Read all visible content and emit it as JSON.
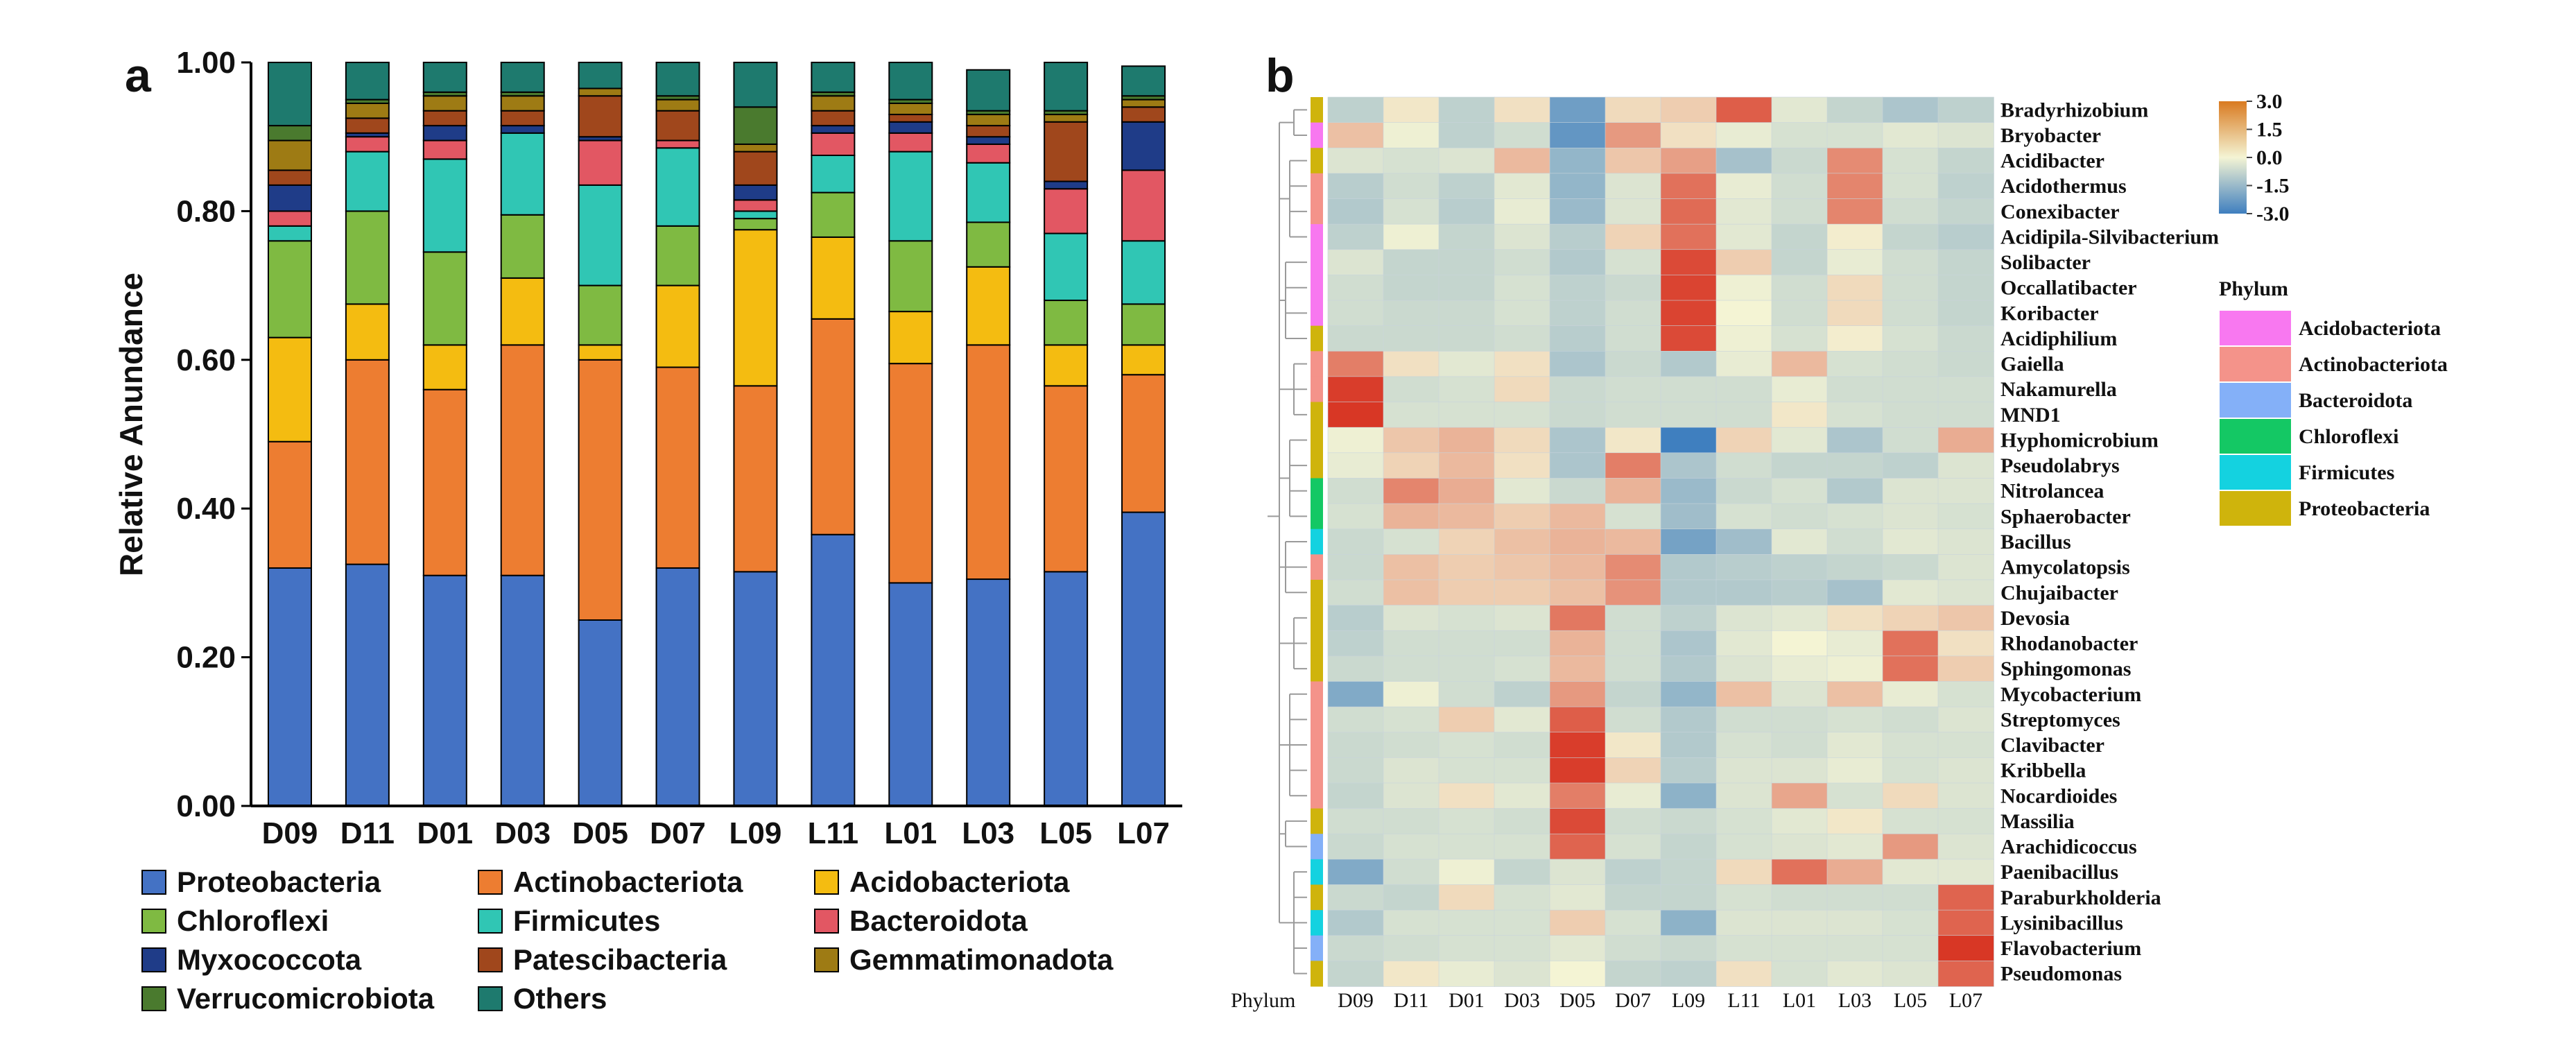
{
  "panel_a": {
    "letter": "a",
    "ylabel": "Relative Anundance",
    "yticks": [
      "0.00",
      "0.20",
      "0.40",
      "0.60",
      "0.80",
      "1.00"
    ]
  },
  "panel_b": {
    "letter": "b",
    "phylum_column_label": "Phylum",
    "legend_title": "Phylum",
    "scale_ticks": [
      "3.0",
      "1.5",
      "0.0",
      "-1.5",
      "-3.0"
    ]
  },
  "colors": {
    "Proteobacteria": "#4472C4",
    "Actinobacteriota": "#ED7D31",
    "Acidobacteriota": "#F4BC11",
    "Chloroflexi": "#7FBA42",
    "Firmicutes": "#30C6B4",
    "Bacteroidota": "#E25763",
    "Myxococcota": "#1F3C88",
    "Patescibacteria": "#A0471C",
    "Gemmatimonadota": "#9E7B14",
    "Verrucomicrobiota": "#4A7A2E",
    "Others": "#1E7A6E",
    "heat_low": "#3F7FBF",
    "heat_mid": "#F4F4D4",
    "heat_high": "#D7301F",
    "phylum_Acidobacteriota": "#F878F0",
    "phylum_Actinobacteriota": "#F4938A",
    "phylum_Bacteroidota": "#84B0F8",
    "phylum_Chloroflexi": "#14C864",
    "phylum_Firmicutes": "#14D2E0",
    "phylum_Proteobacteria": "#CFB40C"
  },
  "chart_data": [
    {
      "type": "bar",
      "stacked": true,
      "title": "",
      "xlabel": "",
      "ylabel": "Relative Anundance",
      "ylim": [
        0,
        1
      ],
      "categories": [
        "D09",
        "D11",
        "D01",
        "D03",
        "D05",
        "D07",
        "L09",
        "L11",
        "L01",
        "L03",
        "L05",
        "L07"
      ],
      "series": [
        {
          "name": "Proteobacteria",
          "values": [
            0.32,
            0.325,
            0.31,
            0.31,
            0.25,
            0.32,
            0.315,
            0.365,
            0.3,
            0.305,
            0.315,
            0.395
          ]
        },
        {
          "name": "Actinobacteriota",
          "values": [
            0.17,
            0.275,
            0.25,
            0.31,
            0.35,
            0.27,
            0.25,
            0.29,
            0.295,
            0.315,
            0.25,
            0.185
          ]
        },
        {
          "name": "Acidobacteriota",
          "values": [
            0.14,
            0.075,
            0.06,
            0.09,
            0.02,
            0.11,
            0.21,
            0.11,
            0.07,
            0.105,
            0.055,
            0.04
          ]
        },
        {
          "name": "Chloroflexi",
          "values": [
            0.13,
            0.125,
            0.125,
            0.085,
            0.08,
            0.08,
            0.015,
            0.06,
            0.095,
            0.06,
            0.06,
            0.055
          ]
        },
        {
          "name": "Firmicutes",
          "values": [
            0.02,
            0.08,
            0.125,
            0.11,
            0.135,
            0.105,
            0.01,
            0.05,
            0.12,
            0.08,
            0.09,
            0.085
          ]
        },
        {
          "name": "Bacteroidota",
          "values": [
            0.02,
            0.02,
            0.025,
            0.0,
            0.06,
            0.01,
            0.015,
            0.03,
            0.025,
            0.025,
            0.06,
            0.095
          ]
        },
        {
          "name": "Myxococcota",
          "values": [
            0.035,
            0.005,
            0.02,
            0.01,
            0.005,
            0.0,
            0.02,
            0.01,
            0.015,
            0.01,
            0.01,
            0.065
          ]
        },
        {
          "name": "Patescibacteria",
          "values": [
            0.02,
            0.02,
            0.02,
            0.02,
            0.055,
            0.04,
            0.045,
            0.02,
            0.01,
            0.015,
            0.08,
            0.02
          ]
        },
        {
          "name": "Gemmatimonadota",
          "values": [
            0.04,
            0.02,
            0.02,
            0.02,
            0.01,
            0.015,
            0.01,
            0.02,
            0.015,
            0.015,
            0.01,
            0.01
          ]
        },
        {
          "name": "Verrucomicrobiota",
          "values": [
            0.02,
            0.005,
            0.005,
            0.005,
            0.0,
            0.005,
            0.05,
            0.005,
            0.005,
            0.005,
            0.005,
            0.005
          ]
        },
        {
          "name": "Others",
          "values": [
            0.085,
            0.05,
            0.04,
            0.04,
            0.035,
            0.045,
            0.06,
            0.04,
            0.05,
            0.055,
            0.065,
            0.04
          ]
        }
      ]
    },
    {
      "type": "heatmap",
      "title": "",
      "columns": [
        "D09",
        "D11",
        "D01",
        "D03",
        "D05",
        "D07",
        "L09",
        "L11",
        "L01",
        "L03",
        "L05",
        "L07"
      ],
      "rows": [
        "Bradyrhizobium",
        "Bryobacter",
        "Acidibacter",
        "Acidothermus",
        "Conexibacter",
        "Acidipila-Silvibacterium",
        "Solibacter",
        "Occallatibacter",
        "Koribacter",
        "Acidiphilium",
        "Gaiella",
        "Nakamurella",
        "MND1",
        "Hyphomicrobium",
        "Pseudolabrys",
        "Nitrolancea",
        "Sphaerobacter",
        "Bacillus",
        "Amycolatopsis",
        "Chujaibacter",
        "Devosia",
        "Rhodanobacter",
        "Sphingomonas",
        "Mycobacterium",
        "Streptomyces",
        "Clavibacter",
        "Kribbella",
        "Nocardioides",
        "Massilia",
        "Arachidicoccus",
        "Paenibacillus",
        "Paraburkholderia",
        "Lysinibacillus",
        "Flavobacterium",
        "Pseudomonas"
      ],
      "row_phylum": [
        "Proteobacteria",
        "Acidobacteriota",
        "Proteobacteria",
        "Actinobacteriota",
        "Actinobacteriota",
        "Acidobacteriota",
        "Acidobacteriota",
        "Acidobacteriota",
        "Acidobacteriota",
        "Proteobacteria",
        "Actinobacteriota",
        "Actinobacteriota",
        "Proteobacteria",
        "Proteobacteria",
        "Proteobacteria",
        "Chloroflexi",
        "Chloroflexi",
        "Firmicutes",
        "Actinobacteriota",
        "Proteobacteria",
        "Proteobacteria",
        "Proteobacteria",
        "Proteobacteria",
        "Actinobacteriota",
        "Actinobacteriota",
        "Actinobacteriota",
        "Actinobacteriota",
        "Actinobacteriota",
        "Proteobacteria",
        "Bacteroidota",
        "Firmicutes",
        "Proteobacteria",
        "Firmicutes",
        "Bacteroidota",
        "Proteobacteria"
      ],
      "values": [
        [
          -0.9,
          0.2,
          -0.9,
          0.3,
          -2.2,
          0.4,
          0.6,
          2.3,
          -0.3,
          -0.8,
          -1.2,
          -0.9
        ],
        [
          0.8,
          -0.1,
          -0.9,
          -0.6,
          -2.4,
          1.4,
          0.3,
          -0.2,
          -0.5,
          -0.5,
          -0.3,
          -0.4
        ],
        [
          -0.4,
          -0.5,
          -0.4,
          0.9,
          -1.6,
          0.7,
          1.3,
          -1.3,
          -0.7,
          1.6,
          -0.5,
          -0.8
        ],
        [
          -1.0,
          -0.6,
          -0.9,
          -0.3,
          -1.6,
          -0.4,
          2.0,
          -0.2,
          -0.6,
          1.7,
          -0.5,
          -0.9
        ],
        [
          -1.1,
          -0.5,
          -1.0,
          -0.2,
          -1.5,
          -0.4,
          2.1,
          -0.3,
          -0.6,
          1.7,
          -0.6,
          -0.8
        ],
        [
          -0.9,
          -0.1,
          -0.8,
          -0.4,
          -1.0,
          0.5,
          2.0,
          -0.3,
          -0.8,
          0.1,
          -0.8,
          -1.0
        ],
        [
          -0.4,
          -0.8,
          -0.8,
          -0.6,
          -1.1,
          -0.5,
          2.6,
          0.6,
          -0.8,
          -0.2,
          -0.6,
          -0.8
        ],
        [
          -0.6,
          -0.8,
          -0.8,
          -0.5,
          -0.9,
          -0.7,
          2.7,
          -0.1,
          -0.6,
          0.4,
          -0.6,
          -0.8
        ],
        [
          -0.6,
          -0.7,
          -0.7,
          -0.5,
          -0.9,
          -0.6,
          2.7,
          0.0,
          -0.6,
          0.4,
          -0.6,
          -0.8
        ],
        [
          -0.7,
          -0.7,
          -0.7,
          -0.6,
          -1.0,
          -0.6,
          2.6,
          -0.1,
          -0.5,
          0.1,
          -0.5,
          -0.7
        ],
        [
          1.8,
          0.3,
          -0.3,
          0.3,
          -1.2,
          -0.7,
          -1.1,
          -0.2,
          0.9,
          -0.5,
          -0.6,
          -0.7
        ],
        [
          2.8,
          -0.6,
          -0.5,
          0.4,
          -0.7,
          -0.6,
          -0.6,
          -0.6,
          -0.2,
          -0.6,
          -0.6,
          -0.6
        ],
        [
          2.9,
          -0.5,
          -0.5,
          -0.5,
          -0.7,
          -0.6,
          -0.6,
          -0.6,
          0.2,
          -0.5,
          -0.6,
          -0.6
        ],
        [
          -0.1,
          0.7,
          1.0,
          0.4,
          -1.2,
          0.2,
          -3.0,
          0.5,
          -0.3,
          -1.2,
          -0.6,
          1.1
        ],
        [
          -0.2,
          0.5,
          0.9,
          0.3,
          -1.2,
          1.8,
          -1.2,
          -0.6,
          -0.8,
          -0.8,
          -0.9,
          -0.4
        ],
        [
          -0.6,
          1.7,
          1.1,
          -0.3,
          -0.7,
          1.0,
          -1.5,
          -0.7,
          -0.5,
          -1.1,
          -0.4,
          -0.4
        ],
        [
          -0.5,
          1.0,
          0.9,
          0.6,
          0.9,
          -0.5,
          -1.4,
          -0.5,
          -0.6,
          -0.5,
          -0.4,
          -0.5
        ],
        [
          -0.7,
          -0.5,
          0.5,
          0.8,
          1.0,
          0.9,
          -2.1,
          -1.4,
          -0.3,
          -0.6,
          -0.3,
          -0.4
        ],
        [
          -0.7,
          0.8,
          0.6,
          0.7,
          0.9,
          1.6,
          -1.1,
          -1.0,
          -0.9,
          -0.8,
          -0.7,
          -0.4
        ],
        [
          -0.6,
          0.8,
          0.6,
          0.6,
          0.8,
          1.5,
          -1.1,
          -1.1,
          -1.0,
          -1.3,
          -0.3,
          -0.4
        ],
        [
          -1.0,
          -0.4,
          -0.5,
          -0.4,
          1.9,
          -0.6,
          -0.9,
          -0.4,
          -0.3,
          0.3,
          0.5,
          0.7
        ],
        [
          -0.9,
          -0.6,
          -0.6,
          -0.6,
          1.0,
          -0.6,
          -1.2,
          -0.3,
          0.0,
          -0.2,
          2.0,
          0.3
        ],
        [
          -0.7,
          -0.6,
          -0.6,
          -0.5,
          0.9,
          -0.6,
          -1.1,
          -0.4,
          -0.2,
          -0.1,
          2.0,
          0.6
        ],
        [
          -1.9,
          -0.1,
          -0.6,
          -0.9,
          1.4,
          -0.8,
          -1.6,
          0.8,
          -0.4,
          0.8,
          -0.2,
          -0.5
        ],
        [
          -0.6,
          -0.5,
          0.6,
          -0.3,
          2.3,
          -0.6,
          -1.1,
          -0.6,
          -0.6,
          -0.5,
          -0.6,
          -0.4
        ],
        [
          -0.7,
          -0.6,
          -0.5,
          -0.6,
          2.8,
          0.2,
          -1.1,
          -0.5,
          -0.6,
          -0.3,
          -0.5,
          -0.5
        ],
        [
          -0.7,
          -0.4,
          -0.5,
          -0.5,
          2.8,
          0.5,
          -1.0,
          -0.4,
          -0.4,
          -0.2,
          -0.5,
          -0.4
        ],
        [
          -0.8,
          -0.4,
          0.3,
          -0.3,
          1.8,
          -0.2,
          -1.7,
          -0.4,
          1.2,
          -0.5,
          0.4,
          -0.4
        ],
        [
          -0.6,
          -0.6,
          -0.5,
          -0.6,
          2.6,
          -0.6,
          -0.7,
          -0.5,
          -0.3,
          0.2,
          -0.5,
          -0.5
        ],
        [
          -0.7,
          -0.5,
          -0.5,
          -0.5,
          2.2,
          -0.5,
          -0.8,
          -0.5,
          -0.4,
          -0.3,
          1.4,
          -0.4
        ],
        [
          -1.9,
          -0.6,
          -0.1,
          -0.8,
          -0.4,
          -0.9,
          -0.8,
          0.4,
          2.0,
          1.1,
          -0.3,
          -0.3
        ],
        [
          -0.7,
          -0.8,
          0.4,
          -0.5,
          -0.3,
          -0.8,
          -0.8,
          -0.5,
          -0.6,
          -0.6,
          -0.6,
          2.2
        ],
        [
          -1.1,
          -0.5,
          -0.5,
          -0.5,
          0.6,
          -0.5,
          -1.7,
          -0.4,
          -0.4,
          -0.4,
          -0.5,
          2.2
        ],
        [
          -0.7,
          -0.6,
          -0.5,
          -0.5,
          -0.3,
          -0.6,
          -0.7,
          -0.5,
          -0.5,
          -0.5,
          -0.5,
          2.9
        ],
        [
          -0.8,
          0.2,
          -0.2,
          -0.4,
          0.0,
          -0.8,
          -0.9,
          0.3,
          -0.5,
          -0.3,
          -0.4,
          2.2
        ]
      ],
      "vmin": -3.0,
      "vmax": 3.0,
      "colorbar_ticks": [
        3.0,
        1.5,
        0.0,
        -1.5,
        -3.0
      ],
      "phylum_legend": [
        "Acidobacteriota",
        "Actinobacteriota",
        "Bacteroidota",
        "Chloroflexi",
        "Firmicutes",
        "Proteobacteria"
      ]
    }
  ]
}
